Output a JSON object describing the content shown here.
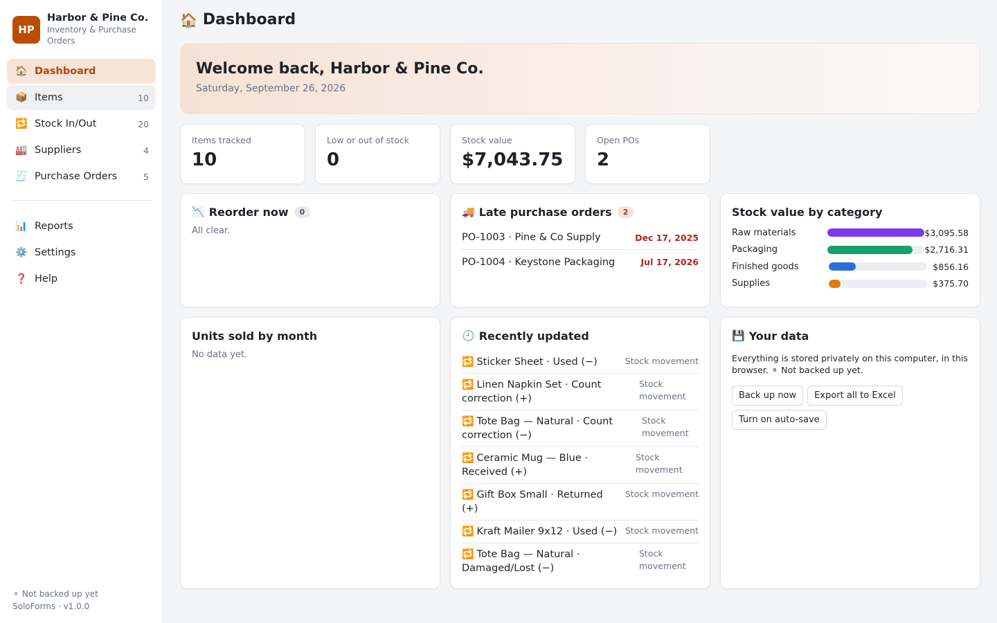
{
  "brand": {
    "initials": "HP",
    "name": "Harbor & Pine Co.",
    "subtitle": "Inventory & Purchase Orders"
  },
  "nav": {
    "primary": [
      {
        "icon": "🏠",
        "label": "Dashboard",
        "count": ""
      },
      {
        "icon": "📦",
        "label": "Items",
        "count": "10"
      },
      {
        "icon": "🔁",
        "label": "Stock In/Out",
        "count": "20"
      },
      {
        "icon": "🏭",
        "label": "Suppliers",
        "count": "4"
      },
      {
        "icon": "🧾",
        "label": "Purchase Orders",
        "count": "5"
      }
    ],
    "secondary": [
      {
        "icon": "📊",
        "label": "Reports"
      },
      {
        "icon": "⚙️",
        "label": "Settings"
      },
      {
        "icon": "❓",
        "label": "Help"
      }
    ]
  },
  "sidebar_footer": {
    "backup_status": "⚬ Not backed up yet",
    "version": "SoloForms · v1.0.0"
  },
  "page": {
    "icon": "🏠",
    "title": "Dashboard"
  },
  "hero": {
    "title": "Welcome back, Harbor & Pine Co.",
    "date": "Saturday, September 26, 2026"
  },
  "stats": [
    {
      "label": "Items tracked",
      "value": "10"
    },
    {
      "label": "Low or out of stock",
      "value": "0"
    },
    {
      "label": "Stock value",
      "value": "$7,043.75"
    },
    {
      "label": "Open POs",
      "value": "2"
    }
  ],
  "reorder": {
    "icon": "📉",
    "title": "Reorder now",
    "count": "0",
    "empty": "All clear."
  },
  "late_pos": {
    "icon": "🚚",
    "title": "Late purchase orders",
    "count": "2",
    "rows": [
      {
        "label": "PO-1003 · Pine & Co Supply",
        "date": "Dec 17, 2025"
      },
      {
        "label": "PO-1004 · Keystone Packaging",
        "date": "Jul 17, 2026"
      }
    ]
  },
  "category_value": {
    "title": "Stock value by category",
    "rows": [
      {
        "name": "Raw materials",
        "value": "$3,095.58",
        "fraction": 1.0,
        "color": "#7c3aed"
      },
      {
        "name": "Packaging",
        "value": "$2,716.31",
        "fraction": 0.877,
        "color": "#16a06c"
      },
      {
        "name": "Finished goods",
        "value": "$856.16",
        "fraction": 0.277,
        "color": "#2e6fd6"
      },
      {
        "name": "Supplies",
        "value": "$375.70",
        "fraction": 0.121,
        "color": "#e07a10"
      }
    ]
  },
  "units_sold": {
    "title": "Units sold by month",
    "empty": "No data yet."
  },
  "recent": {
    "icon": "🕘",
    "title": "Recently updated",
    "row_icon": "🔁",
    "rows": [
      {
        "text": "Sticker Sheet · Used (−)",
        "kind": "Stock movement"
      },
      {
        "text": "Linen Napkin Set · Count correction (+)",
        "kind": "Stock movement"
      },
      {
        "text": "Tote Bag — Natural · Count correction (−)",
        "kind": "Stock movement"
      },
      {
        "text": "Ceramic Mug — Blue · Received (+)",
        "kind": "Stock movement"
      },
      {
        "text": "Gift Box Small · Returned (+)",
        "kind": "Stock movement"
      },
      {
        "text": "Kraft Mailer 9x12 · Used (−)",
        "kind": "Stock movement"
      },
      {
        "text": "Tote Bag — Natural · Damaged/Lost (−)",
        "kind": "Stock movement"
      }
    ]
  },
  "your_data": {
    "icon": "💾",
    "title": "Your data",
    "description": "Everything is stored privately on this computer, in this browser. ⚬ Not backed up yet.",
    "buttons": {
      "backup": "Back up now",
      "export": "Export all to Excel",
      "autosave": "Turn on auto-save"
    }
  }
}
